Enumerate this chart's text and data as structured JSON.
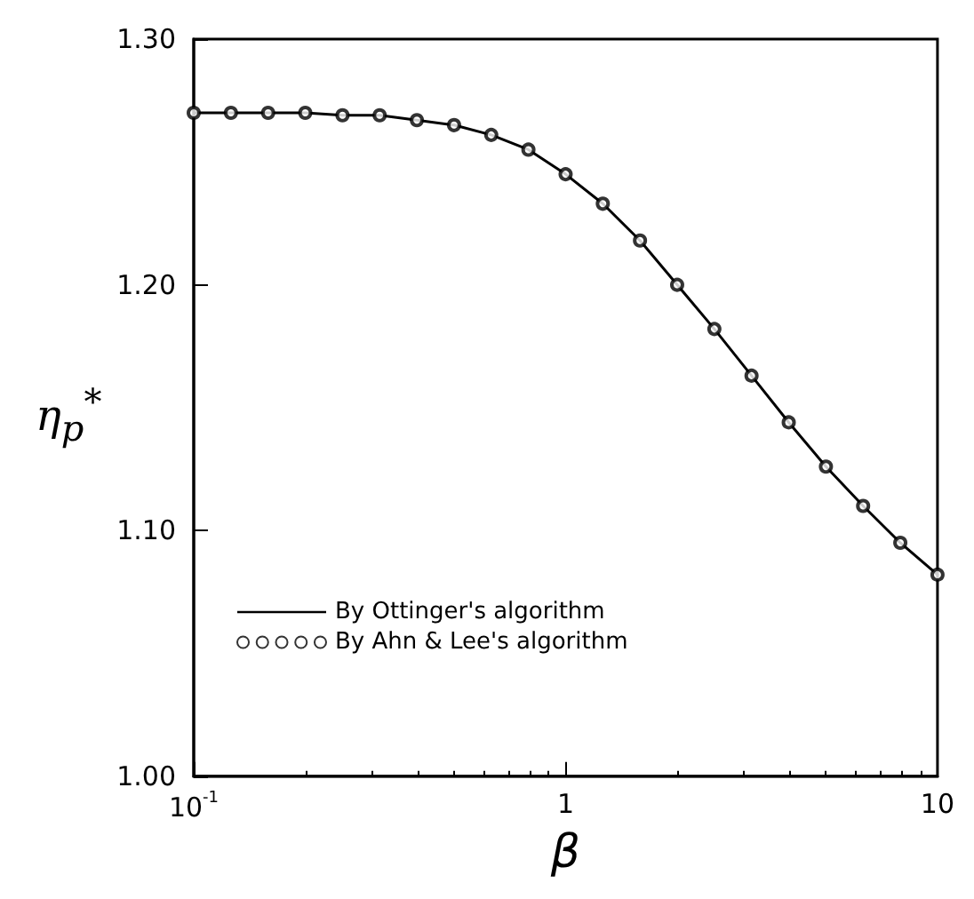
{
  "chart_data": {
    "type": "line",
    "xlabel": "β",
    "ylabel": "η$_{p}$$^{*}$",
    "x": [
      0.1,
      0.1259,
      0.1585,
      0.1995,
      0.2512,
      0.3162,
      0.3981,
      0.5012,
      0.631,
      0.7943,
      1,
      1.259,
      1.585,
      1.995,
      2.512,
      3.162,
      3.981,
      5.012,
      6.31,
      7.943,
      10
    ],
    "series": [
      {
        "name": "By Ottinger's algorithm",
        "type": "line",
        "color": "#000000",
        "marker": "none",
        "line_style": "solid",
        "values": [
          1.27,
          1.27,
          1.27,
          1.27,
          1.269,
          1.269,
          1.267,
          1.265,
          1.261,
          1.255,
          1.245,
          1.233,
          1.218,
          1.2,
          1.182,
          1.163,
          1.144,
          1.126,
          1.11,
          1.095,
          1.082
        ]
      },
      {
        "name": "By Ahn & Lee's algorithm",
        "type": "scatter",
        "color": "#000000",
        "marker": "circle",
        "values": [
          1.27,
          1.27,
          1.27,
          1.27,
          1.269,
          1.269,
          1.267,
          1.265,
          1.261,
          1.255,
          1.245,
          1.233,
          1.218,
          1.2,
          1.182,
          1.163,
          1.144,
          1.126,
          1.11,
          1.095,
          1.082
        ]
      }
    ],
    "log": "x",
    "xlim": [
      0.1,
      10
    ],
    "xticks": [
      {
        "value": 0.1,
        "label": "10$^{-1}$"
      },
      1,
      10
    ],
    "ylim": [
      1.0,
      1.3
    ],
    "yticks": [
      {
        "value": 1.0,
        "label": "1.00"
      },
      {
        "value": 1.1,
        "label": "1.10"
      },
      {
        "value": 1.2,
        "label": "1.20"
      },
      {
        "value": 1.3,
        "label": "1.30"
      }
    ],
    "grid": false,
    "legend": "bottom left"
  }
}
